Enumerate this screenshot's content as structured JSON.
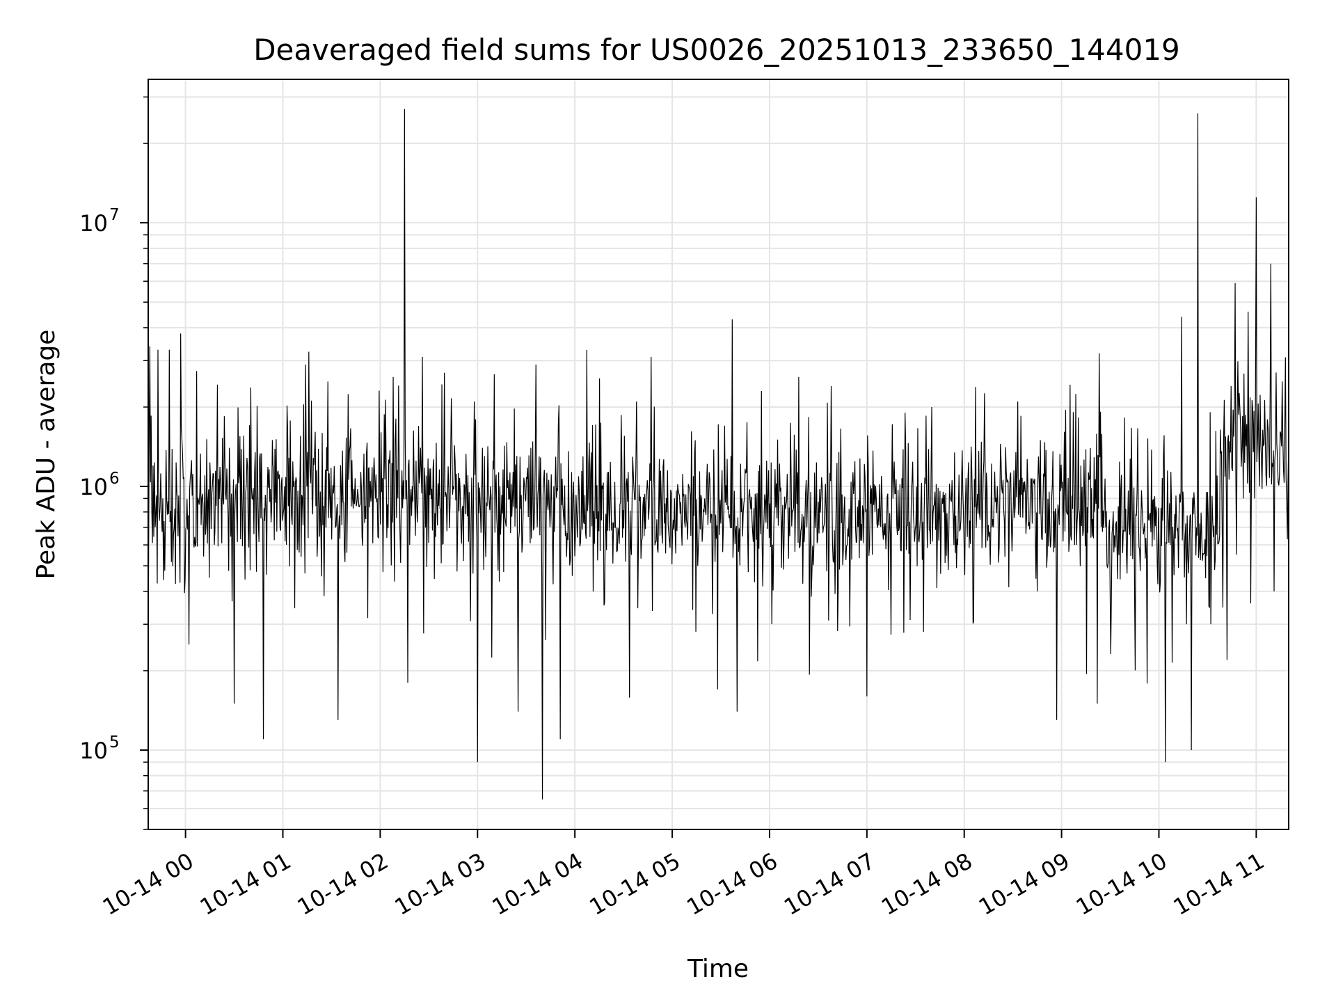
{
  "chart_data": {
    "type": "line",
    "title": "Deaveraged field sums for US0026_20251013_233650_144019",
    "xlabel": "Time",
    "ylabel": "Peak ADU - average",
    "x_type": "datetime",
    "xlim": [
      "2025-10-13T23:37:00",
      "2025-10-14T11:20:00"
    ],
    "ylim": [
      50000,
      35000000
    ],
    "yscale": "log",
    "grid": true,
    "line_color": "#000000",
    "grid_color": "#e5e5e5",
    "x_ticks": [
      {
        "value": "2025-10-14T00:00:00",
        "label": "10-14 00"
      },
      {
        "value": "2025-10-14T01:00:00",
        "label": "10-14 01"
      },
      {
        "value": "2025-10-14T02:00:00",
        "label": "10-14 02"
      },
      {
        "value": "2025-10-14T03:00:00",
        "label": "10-14 03"
      },
      {
        "value": "2025-10-14T04:00:00",
        "label": "10-14 04"
      },
      {
        "value": "2025-10-14T05:00:00",
        "label": "10-14 05"
      },
      {
        "value": "2025-10-14T06:00:00",
        "label": "10-14 06"
      },
      {
        "value": "2025-10-14T07:00:00",
        "label": "10-14 07"
      },
      {
        "value": "2025-10-14T08:00:00",
        "label": "10-14 08"
      },
      {
        "value": "2025-10-14T09:00:00",
        "label": "10-14 09"
      },
      {
        "value": "2025-10-14T10:00:00",
        "label": "10-14 10"
      },
      {
        "value": "2025-10-14T11:00:00",
        "label": "10-14 11"
      }
    ],
    "y_ticks": [
      {
        "value": 100000,
        "base": "10",
        "exp": "5"
      },
      {
        "value": 1000000,
        "base": "10",
        "exp": "6"
      },
      {
        "value": 10000000,
        "base": "10",
        "exp": "7"
      }
    ],
    "series": [
      {
        "x": [
          "2025-10-13T23:37:00",
          "2025-10-13T23:38:00",
          "2025-10-13T23:40:00",
          "2025-10-13T23:43:00",
          "2025-10-13T23:46:00",
          "2025-10-13T23:50:00",
          "2025-10-13T23:53:00",
          "2025-10-13T23:57:00",
          "2025-10-14T00:10:00",
          "2025-10-14T00:27:00",
          "2025-10-14T00:30:00",
          "2025-10-14T00:41:00",
          "2025-10-14T00:48:00",
          "2025-10-14T01:01:00",
          "2025-10-14T01:14:00",
          "2025-10-14T01:18:00",
          "2025-10-14T01:34:00",
          "2025-10-14T01:57:00",
          "2025-10-14T02:08:00",
          "2025-10-14T02:13:00",
          "2025-10-14T02:15:00",
          "2025-10-14T02:17:00",
          "2025-10-14T02:26:00",
          "2025-10-14T02:45:00",
          "2025-10-14T02:58:00",
          "2025-10-14T03:00:00",
          "2025-10-14T03:03:00",
          "2025-10-14T03:08:00",
          "2025-10-14T03:25:00",
          "2025-10-14T03:36:00",
          "2025-10-14T03:40:00",
          "2025-10-14T03:47:00",
          "2025-10-14T03:51:00",
          "2025-10-14T04:05:00",
          "2025-10-14T04:25:00",
          "2025-10-14T04:38:00",
          "2025-10-14T04:47:00",
          "2025-10-14T05:08:00",
          "2025-10-14T05:20:00",
          "2025-10-14T05:28:00",
          "2025-10-14T05:37:00",
          "2025-10-14T05:40:00",
          "2025-10-14T05:43:00",
          "2025-10-14T05:55:00",
          "2025-10-14T06:03:00",
          "2025-10-14T06:18:00",
          "2025-10-14T06:23:00",
          "2025-10-14T06:38:00",
          "2025-10-14T06:53:00",
          "2025-10-14T07:00:00",
          "2025-10-14T07:05:00",
          "2025-10-14T07:20:00",
          "2025-10-14T07:40:00",
          "2025-10-14T07:56:00",
          "2025-10-14T08:18:00",
          "2025-10-14T08:33:00",
          "2025-10-14T08:45:00",
          "2025-10-14T08:57:00",
          "2025-10-14T09:08:00",
          "2025-10-14T09:22:00",
          "2025-10-14T09:28:00",
          "2025-10-14T09:45:00",
          "2025-10-14T10:04:00",
          "2025-10-14T10:07:00",
          "2025-10-14T10:14:00",
          "2025-10-14T10:17:00",
          "2025-10-14T10:20:00",
          "2025-10-14T10:24:00",
          "2025-10-14T10:32:00",
          "2025-10-14T10:39:00",
          "2025-10-14T10:42:00",
          "2025-10-14T10:47:00",
          "2025-10-14T10:52:00",
          "2025-10-14T10:55:00",
          "2025-10-14T10:59:00",
          "2025-10-14T11:00:00",
          "2025-10-14T11:02:00",
          "2025-10-14T11:06:00",
          "2025-10-14T11:09:00",
          "2025-10-14T11:11:00",
          "2025-10-14T11:16:00",
          "2025-10-14T11:20:00"
        ],
        "y": [
          200000,
          3400000,
          1200000,
          3300000,
          900000,
          3300000,
          700000,
          3800000,
          900000,
          1400000,
          150000,
          900000,
          110000,
          1000000,
          2900000,
          900000,
          130000,
          900000,
          2600000,
          900000,
          27000000,
          180000,
          3100000,
          1000000,
          2100000,
          90000,
          1400000,
          1000000,
          140000,
          2900000,
          65000,
          1000000,
          110000,
          1300000,
          700000,
          2100000,
          3100000,
          700000,
          900000,
          170000,
          4300000,
          140000,
          900000,
          2300000,
          900000,
          2600000,
          700000,
          2400000,
          700000,
          160000,
          800000,
          700000,
          2000000,
          600000,
          700000,
          2100000,
          400000,
          130000,
          600000,
          150000,
          500000,
          400000,
          90000,
          600000,
          4400000,
          300000,
          100000,
          26000000,
          300000,
          700000,
          220000,
          5900000,
          900000,
          4600000,
          900000,
          12500000,
          1000000,
          1100000,
          7000000,
          400000,
          2500000,
          1500000
        ]
      }
    ]
  }
}
